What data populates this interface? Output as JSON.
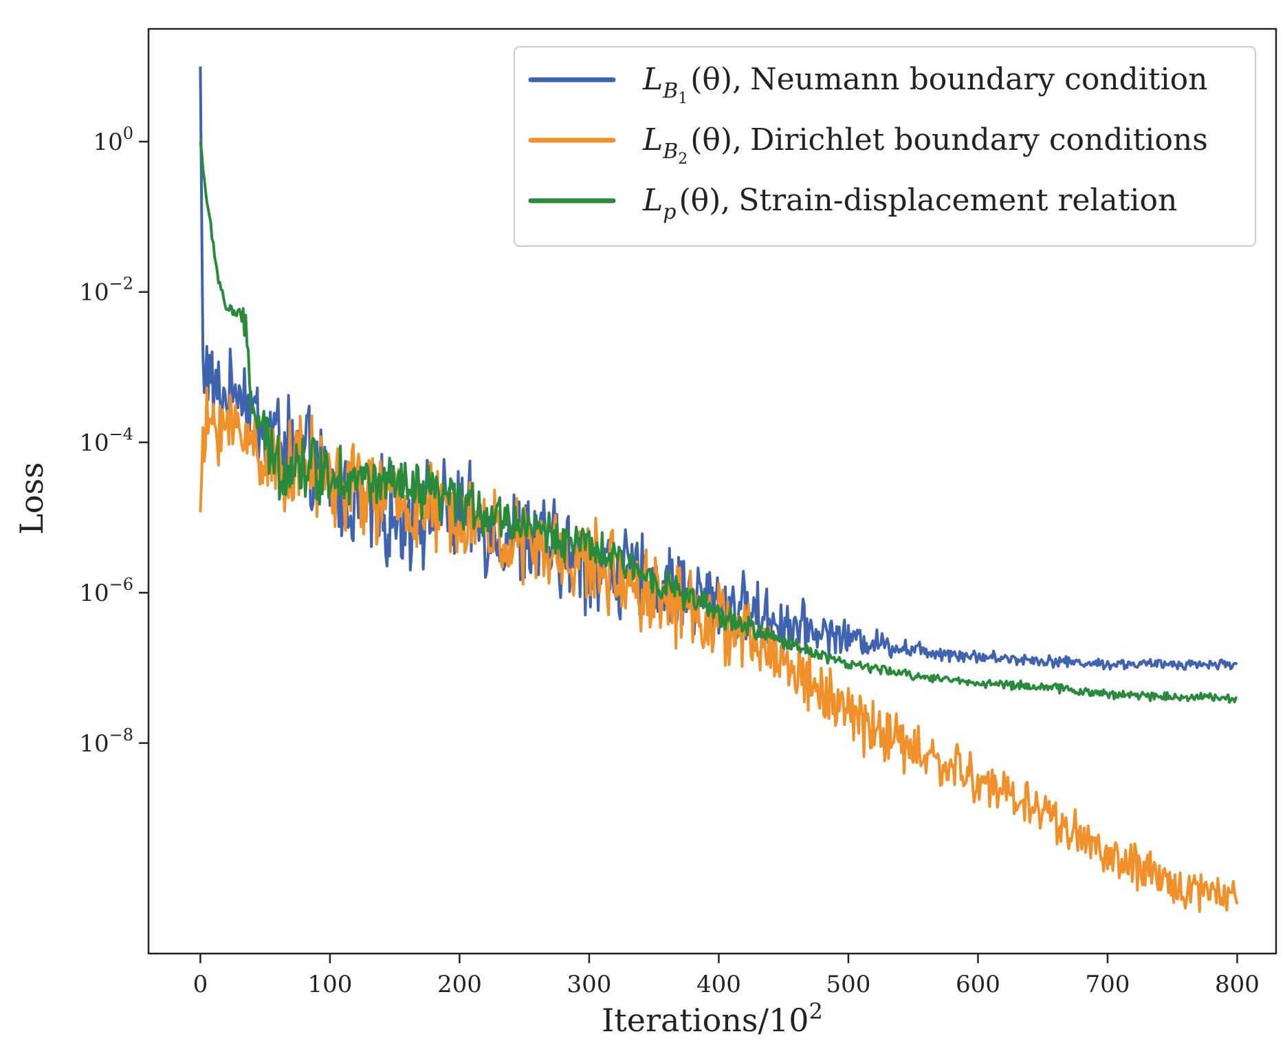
{
  "chart_data": {
    "type": "line",
    "title": "",
    "xlabel": "Iterations/10",
    "xlabel_superscript": "2",
    "ylabel": "Loss",
    "xlim": [
      -40,
      830
    ],
    "ylim_log10": [
      -10.8,
      1.5
    ],
    "yscale": "log",
    "grid": false,
    "legend_position": "top-right",
    "x_ticks": [
      {
        "value": 0,
        "label": "0"
      },
      {
        "value": 100,
        "label": "100"
      },
      {
        "value": 200,
        "label": "200"
      },
      {
        "value": 300,
        "label": "300"
      },
      {
        "value": 400,
        "label": "400"
      },
      {
        "value": 500,
        "label": "500"
      },
      {
        "value": 600,
        "label": "600"
      },
      {
        "value": 700,
        "label": "700"
      },
      {
        "value": 800,
        "label": "800"
      }
    ],
    "y_ticks": [
      {
        "exp": 0,
        "base": "10",
        "sup": "0"
      },
      {
        "exp": -2,
        "base": "10",
        "sup": "−2"
      },
      {
        "exp": -4,
        "base": "10",
        "sup": "−4"
      },
      {
        "exp": -6,
        "base": "10",
        "sup": "−6"
      },
      {
        "exp": -8,
        "base": "10",
        "sup": "−8"
      }
    ],
    "series": [
      {
        "name": "Neumann boundary condition",
        "legend_math": {
          "main": "L",
          "sub": "B",
          "subsub": "1",
          "arg": "(θ),"
        },
        "legend_text": "Neumann boundary condition",
        "color": "#4063b0",
        "x": [
          0,
          2,
          5,
          10,
          20,
          30,
          40,
          50,
          60,
          80,
          100,
          120,
          150,
          180,
          200,
          250,
          300,
          350,
          400,
          450,
          500,
          550,
          600,
          650,
          700,
          750,
          800
        ],
        "log10": [
          1.0,
          -3.0,
          -3.0,
          -3.3,
          -3.4,
          -3.2,
          -3.6,
          -3.8,
          -3.9,
          -4.2,
          -4.6,
          -4.8,
          -5.0,
          -4.9,
          -5.0,
          -5.3,
          -5.6,
          -5.9,
          -6.1,
          -6.4,
          -6.6,
          -6.75,
          -6.85,
          -6.9,
          -6.95,
          -6.95,
          -6.95
        ],
        "noise": [
          0.0,
          0.6,
          0.6,
          0.6,
          0.6,
          0.6,
          0.7,
          0.7,
          0.8,
          0.8,
          0.8,
          0.8,
          0.8,
          0.8,
          0.8,
          0.8,
          0.8,
          0.7,
          0.6,
          0.45,
          0.25,
          0.15,
          0.1,
          0.09,
          0.08,
          0.08,
          0.08
        ]
      },
      {
        "name": "Dirichlet boundary conditions",
        "legend_math": {
          "main": "L",
          "sub": "B",
          "subsub": "2",
          "arg": "(θ),"
        },
        "legend_text": "Dirichlet boundary conditions",
        "color": "#f0902a",
        "x": [
          0,
          2,
          5,
          10,
          20,
          30,
          40,
          60,
          80,
          100,
          150,
          200,
          250,
          300,
          350,
          400,
          450,
          500,
          550,
          600,
          650,
          700,
          750,
          800
        ],
        "log10": [
          -4.9,
          -4.2,
          -3.8,
          -3.7,
          -3.8,
          -3.8,
          -4.0,
          -4.3,
          -4.3,
          -4.5,
          -4.8,
          -5.0,
          -5.4,
          -5.6,
          -6.0,
          -6.4,
          -6.9,
          -7.6,
          -8.1,
          -8.5,
          -8.9,
          -9.5,
          -9.9,
          -10.0
        ],
        "noise": [
          0.1,
          0.5,
          0.6,
          0.6,
          0.6,
          0.6,
          0.7,
          0.7,
          0.75,
          0.75,
          0.75,
          0.7,
          0.7,
          0.7,
          0.65,
          0.6,
          0.55,
          0.5,
          0.45,
          0.4,
          0.4,
          0.35,
          0.35,
          0.3
        ]
      },
      {
        "name": "Strain-displacement relation",
        "legend_math": {
          "main": "L",
          "sub": "p",
          "subsub": "",
          "arg": "(θ),"
        },
        "legend_text": "Strain-displacement relation",
        "color": "#2a8a3c",
        "x": [
          0,
          5,
          10,
          15,
          20,
          30,
          35,
          40,
          50,
          60,
          80,
          100,
          150,
          200,
          250,
          300,
          350,
          400,
          450,
          500,
          550,
          600,
          650,
          700,
          750,
          800
        ],
        "log10": [
          0.0,
          -0.8,
          -1.4,
          -1.9,
          -2.2,
          -2.3,
          -2.5,
          -3.5,
          -4.0,
          -4.3,
          -4.3,
          -4.4,
          -4.6,
          -4.8,
          -5.1,
          -5.4,
          -5.8,
          -6.3,
          -6.65,
          -6.95,
          -7.1,
          -7.2,
          -7.25,
          -7.35,
          -7.38,
          -7.4
        ],
        "noise": [
          0.05,
          0.1,
          0.12,
          0.15,
          0.12,
          0.1,
          0.3,
          0.45,
          0.5,
          0.55,
          0.55,
          0.5,
          0.45,
          0.4,
          0.35,
          0.3,
          0.25,
          0.2,
          0.12,
          0.08,
          0.07,
          0.07,
          0.07,
          0.07,
          0.07,
          0.07
        ]
      }
    ]
  }
}
